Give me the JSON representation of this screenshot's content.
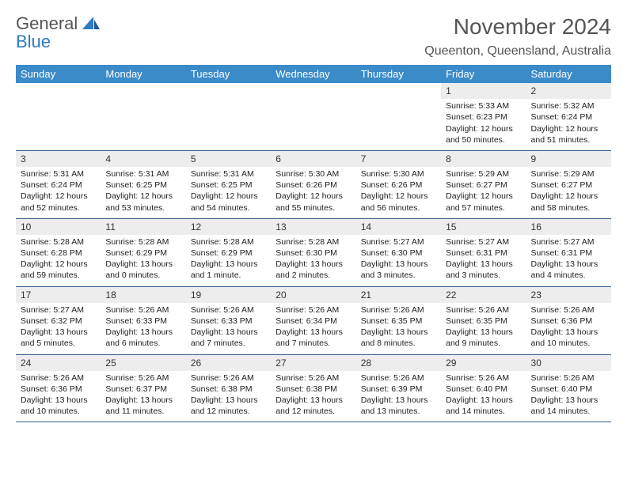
{
  "logo": {
    "line1": "General",
    "line2": "Blue"
  },
  "title": "November 2024",
  "location": "Queenton, Queensland, Australia",
  "colors": {
    "header_bg": "#3b8bc9",
    "header_text": "#ffffff",
    "daynum_bg": "#ededed",
    "row_border": "#365f8a",
    "logo_blue": "#2d7bc4",
    "title_color": "#555555"
  },
  "weekdays": [
    "Sunday",
    "Monday",
    "Tuesday",
    "Wednesday",
    "Thursday",
    "Friday",
    "Saturday"
  ],
  "weeks": [
    [
      {
        "day": "",
        "lines": []
      },
      {
        "day": "",
        "lines": []
      },
      {
        "day": "",
        "lines": []
      },
      {
        "day": "",
        "lines": []
      },
      {
        "day": "",
        "lines": []
      },
      {
        "day": "1",
        "lines": [
          "Sunrise: 5:33 AM",
          "Sunset: 6:23 PM",
          "Daylight: 12 hours and 50 minutes."
        ]
      },
      {
        "day": "2",
        "lines": [
          "Sunrise: 5:32 AM",
          "Sunset: 6:24 PM",
          "Daylight: 12 hours and 51 minutes."
        ]
      }
    ],
    [
      {
        "day": "3",
        "lines": [
          "Sunrise: 5:31 AM",
          "Sunset: 6:24 PM",
          "Daylight: 12 hours and 52 minutes."
        ]
      },
      {
        "day": "4",
        "lines": [
          "Sunrise: 5:31 AM",
          "Sunset: 6:25 PM",
          "Daylight: 12 hours and 53 minutes."
        ]
      },
      {
        "day": "5",
        "lines": [
          "Sunrise: 5:31 AM",
          "Sunset: 6:25 PM",
          "Daylight: 12 hours and 54 minutes."
        ]
      },
      {
        "day": "6",
        "lines": [
          "Sunrise: 5:30 AM",
          "Sunset: 6:26 PM",
          "Daylight: 12 hours and 55 minutes."
        ]
      },
      {
        "day": "7",
        "lines": [
          "Sunrise: 5:30 AM",
          "Sunset: 6:26 PM",
          "Daylight: 12 hours and 56 minutes."
        ]
      },
      {
        "day": "8",
        "lines": [
          "Sunrise: 5:29 AM",
          "Sunset: 6:27 PM",
          "Daylight: 12 hours and 57 minutes."
        ]
      },
      {
        "day": "9",
        "lines": [
          "Sunrise: 5:29 AM",
          "Sunset: 6:27 PM",
          "Daylight: 12 hours and 58 minutes."
        ]
      }
    ],
    [
      {
        "day": "10",
        "lines": [
          "Sunrise: 5:28 AM",
          "Sunset: 6:28 PM",
          "Daylight: 12 hours and 59 minutes."
        ]
      },
      {
        "day": "11",
        "lines": [
          "Sunrise: 5:28 AM",
          "Sunset: 6:29 PM",
          "Daylight: 13 hours and 0 minutes."
        ]
      },
      {
        "day": "12",
        "lines": [
          "Sunrise: 5:28 AM",
          "Sunset: 6:29 PM",
          "Daylight: 13 hours and 1 minute."
        ]
      },
      {
        "day": "13",
        "lines": [
          "Sunrise: 5:28 AM",
          "Sunset: 6:30 PM",
          "Daylight: 13 hours and 2 minutes."
        ]
      },
      {
        "day": "14",
        "lines": [
          "Sunrise: 5:27 AM",
          "Sunset: 6:30 PM",
          "Daylight: 13 hours and 3 minutes."
        ]
      },
      {
        "day": "15",
        "lines": [
          "Sunrise: 5:27 AM",
          "Sunset: 6:31 PM",
          "Daylight: 13 hours and 3 minutes."
        ]
      },
      {
        "day": "16",
        "lines": [
          "Sunrise: 5:27 AM",
          "Sunset: 6:31 PM",
          "Daylight: 13 hours and 4 minutes."
        ]
      }
    ],
    [
      {
        "day": "17",
        "lines": [
          "Sunrise: 5:27 AM",
          "Sunset: 6:32 PM",
          "Daylight: 13 hours and 5 minutes."
        ]
      },
      {
        "day": "18",
        "lines": [
          "Sunrise: 5:26 AM",
          "Sunset: 6:33 PM",
          "Daylight: 13 hours and 6 minutes."
        ]
      },
      {
        "day": "19",
        "lines": [
          "Sunrise: 5:26 AM",
          "Sunset: 6:33 PM",
          "Daylight: 13 hours and 7 minutes."
        ]
      },
      {
        "day": "20",
        "lines": [
          "Sunrise: 5:26 AM",
          "Sunset: 6:34 PM",
          "Daylight: 13 hours and 7 minutes."
        ]
      },
      {
        "day": "21",
        "lines": [
          "Sunrise: 5:26 AM",
          "Sunset: 6:35 PM",
          "Daylight: 13 hours and 8 minutes."
        ]
      },
      {
        "day": "22",
        "lines": [
          "Sunrise: 5:26 AM",
          "Sunset: 6:35 PM",
          "Daylight: 13 hours and 9 minutes."
        ]
      },
      {
        "day": "23",
        "lines": [
          "Sunrise: 5:26 AM",
          "Sunset: 6:36 PM",
          "Daylight: 13 hours and 10 minutes."
        ]
      }
    ],
    [
      {
        "day": "24",
        "lines": [
          "Sunrise: 5:26 AM",
          "Sunset: 6:36 PM",
          "Daylight: 13 hours and 10 minutes."
        ]
      },
      {
        "day": "25",
        "lines": [
          "Sunrise: 5:26 AM",
          "Sunset: 6:37 PM",
          "Daylight: 13 hours and 11 minutes."
        ]
      },
      {
        "day": "26",
        "lines": [
          "Sunrise: 5:26 AM",
          "Sunset: 6:38 PM",
          "Daylight: 13 hours and 12 minutes."
        ]
      },
      {
        "day": "27",
        "lines": [
          "Sunrise: 5:26 AM",
          "Sunset: 6:38 PM",
          "Daylight: 13 hours and 12 minutes."
        ]
      },
      {
        "day": "28",
        "lines": [
          "Sunrise: 5:26 AM",
          "Sunset: 6:39 PM",
          "Daylight: 13 hours and 13 minutes."
        ]
      },
      {
        "day": "29",
        "lines": [
          "Sunrise: 5:26 AM",
          "Sunset: 6:40 PM",
          "Daylight: 13 hours and 14 minutes."
        ]
      },
      {
        "day": "30",
        "lines": [
          "Sunrise: 5:26 AM",
          "Sunset: 6:40 PM",
          "Daylight: 13 hours and 14 minutes."
        ]
      }
    ]
  ]
}
